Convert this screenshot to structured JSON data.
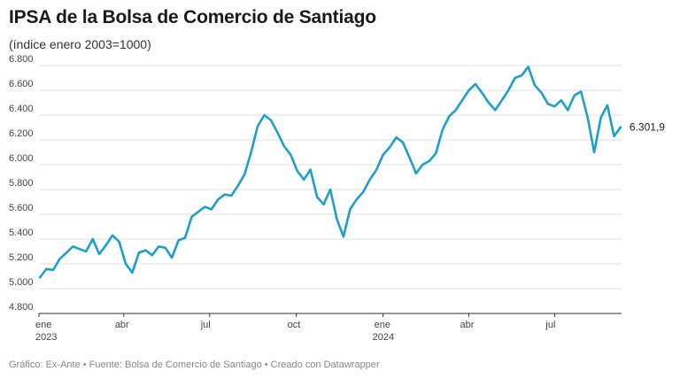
{
  "chart_data": {
    "type": "line",
    "title": "IPSA de la Bolsa de Comercio de Santiago",
    "subtitle": "(índice enero 2003=1000)",
    "y_ticks": [
      "4.800",
      "5.000",
      "5.200",
      "5.400",
      "5.600",
      "5.800",
      "6.000",
      "6.200",
      "6.400",
      "6.600",
      "6.800"
    ],
    "y_tick_values": [
      4800,
      5000,
      5200,
      5400,
      5600,
      5800,
      6000,
      6200,
      6400,
      6600,
      6800
    ],
    "ylim": [
      4800,
      6800
    ],
    "x_ticks": [
      {
        "label": "ene",
        "year": "2023",
        "month": "2023-01"
      },
      {
        "label": "abr",
        "year": "",
        "month": "2023-04"
      },
      {
        "label": "jul",
        "year": "",
        "month": "2023-07"
      },
      {
        "label": "oct",
        "year": "",
        "month": "2023-10"
      },
      {
        "label": "ene",
        "year": "2024",
        "month": "2024-01"
      },
      {
        "label": "abr",
        "year": "",
        "month": "2024-04"
      },
      {
        "label": "jul",
        "year": "",
        "month": "2024-07"
      }
    ],
    "xlim": [
      "2023-01-01",
      "2024-09-10"
    ],
    "grid": true,
    "color": "#1d9fce",
    "end_label": "6.301,9",
    "series": [
      {
        "name": "",
        "points": [
          [
            "2023-01-02",
            5090
          ],
          [
            "2023-01-09",
            5160
          ],
          [
            "2023-01-16",
            5150
          ],
          [
            "2023-01-23",
            5240
          ],
          [
            "2023-01-30",
            5290
          ],
          [
            "2023-02-06",
            5340
          ],
          [
            "2023-02-13",
            5320
          ],
          [
            "2023-02-20",
            5300
          ],
          [
            "2023-02-27",
            5400
          ],
          [
            "2023-03-06",
            5280
          ],
          [
            "2023-03-13",
            5350
          ],
          [
            "2023-03-20",
            5430
          ],
          [
            "2023-03-27",
            5380
          ],
          [
            "2023-04-03",
            5200
          ],
          [
            "2023-04-10",
            5130
          ],
          [
            "2023-04-17",
            5290
          ],
          [
            "2023-04-24",
            5310
          ],
          [
            "2023-05-01",
            5270
          ],
          [
            "2023-05-08",
            5340
          ],
          [
            "2023-05-15",
            5330
          ],
          [
            "2023-05-22",
            5250
          ],
          [
            "2023-05-29",
            5390
          ],
          [
            "2023-06-05",
            5410
          ],
          [
            "2023-06-12",
            5580
          ],
          [
            "2023-06-19",
            5620
          ],
          [
            "2023-06-26",
            5660
          ],
          [
            "2023-07-03",
            5640
          ],
          [
            "2023-07-10",
            5720
          ],
          [
            "2023-07-17",
            5760
          ],
          [
            "2023-07-24",
            5750
          ],
          [
            "2023-07-31",
            5830
          ],
          [
            "2023-08-07",
            5920
          ],
          [
            "2023-08-14",
            6100
          ],
          [
            "2023-08-21",
            6310
          ],
          [
            "2023-08-28",
            6400
          ],
          [
            "2023-09-04",
            6360
          ],
          [
            "2023-09-11",
            6260
          ],
          [
            "2023-09-18",
            6150
          ],
          [
            "2023-09-25",
            6080
          ],
          [
            "2023-10-02",
            5950
          ],
          [
            "2023-10-09",
            5880
          ],
          [
            "2023-10-16",
            5960
          ],
          [
            "2023-10-23",
            5740
          ],
          [
            "2023-10-30",
            5680
          ],
          [
            "2023-11-06",
            5800
          ],
          [
            "2023-11-13",
            5560
          ],
          [
            "2023-11-20",
            5420
          ],
          [
            "2023-11-27",
            5640
          ],
          [
            "2023-12-04",
            5720
          ],
          [
            "2023-12-11",
            5780
          ],
          [
            "2023-12-18",
            5880
          ],
          [
            "2023-12-25",
            5960
          ],
          [
            "2024-01-01",
            6080
          ],
          [
            "2024-01-08",
            6140
          ],
          [
            "2024-01-15",
            6220
          ],
          [
            "2024-01-22",
            6180
          ],
          [
            "2024-01-29",
            6060
          ],
          [
            "2024-02-05",
            5930
          ],
          [
            "2024-02-12",
            6000
          ],
          [
            "2024-02-19",
            6030
          ],
          [
            "2024-02-26",
            6090
          ],
          [
            "2024-03-04",
            6280
          ],
          [
            "2024-03-11",
            6390
          ],
          [
            "2024-03-18",
            6440
          ],
          [
            "2024-03-25",
            6520
          ],
          [
            "2024-04-01",
            6600
          ],
          [
            "2024-04-08",
            6650
          ],
          [
            "2024-04-15",
            6580
          ],
          [
            "2024-04-22",
            6500
          ],
          [
            "2024-04-29",
            6440
          ],
          [
            "2024-05-06",
            6520
          ],
          [
            "2024-05-13",
            6600
          ],
          [
            "2024-05-20",
            6700
          ],
          [
            "2024-05-27",
            6720
          ],
          [
            "2024-06-03",
            6790
          ],
          [
            "2024-06-10",
            6640
          ],
          [
            "2024-06-17",
            6580
          ],
          [
            "2024-06-24",
            6490
          ],
          [
            "2024-07-01",
            6470
          ],
          [
            "2024-07-08",
            6520
          ],
          [
            "2024-07-15",
            6440
          ],
          [
            "2024-07-22",
            6560
          ],
          [
            "2024-07-29",
            6590
          ],
          [
            "2024-08-05",
            6380
          ],
          [
            "2024-08-12",
            6100
          ],
          [
            "2024-08-19",
            6380
          ],
          [
            "2024-08-26",
            6480
          ],
          [
            "2024-09-02",
            6230
          ],
          [
            "2024-09-09",
            6302
          ]
        ]
      }
    ]
  },
  "footer": "Gráfico: Ex-Ante • Fuente: Bolsa de Comercio de Santiago • Creado con Datawrapper"
}
